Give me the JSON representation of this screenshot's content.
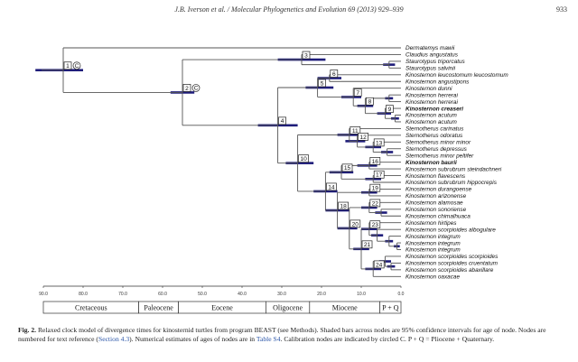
{
  "header": {
    "journal": "J.B. Iverson et al. / Molecular Phylogenetics and Evolution 69 (2013) 929–939",
    "page": "933"
  },
  "figure": {
    "taxa": [
      {
        "name": "Dermatemys mawii",
        "age": 0,
        "bold": false
      },
      {
        "name": "Claudius angustatus",
        "age": 0,
        "bold": false
      },
      {
        "name": "Staurotypus triporcatus",
        "age": 0,
        "bold": false
      },
      {
        "name": "Staurotypus salvinii",
        "age": 0,
        "bold": false
      },
      {
        "name": "Kinosternon leucostomum leucostomum",
        "age": 0,
        "bold": false
      },
      {
        "name": "Kinosternon angustipons",
        "age": 0,
        "bold": false
      },
      {
        "name": "Kinosternon dunni",
        "age": 0,
        "bold": false
      },
      {
        "name": "Kinosternon herrerai",
        "age": 0,
        "bold": false
      },
      {
        "name": "Kinosternon herrerai",
        "age": 0,
        "bold": false
      },
      {
        "name": "Kinosternon creaseri",
        "age": 0,
        "bold": true
      },
      {
        "name": "Kinosternon acutum",
        "age": 0,
        "bold": false
      },
      {
        "name": "Kinosternon acutum",
        "age": 0,
        "bold": false
      },
      {
        "name": "Sternotherus carinatus",
        "age": 0,
        "bold": false
      },
      {
        "name": "Sternotherus odoratus",
        "age": 0,
        "bold": false
      },
      {
        "name": "Sternotherus minor minor",
        "age": 0,
        "bold": false
      },
      {
        "name": "Sternotherus depressus",
        "age": 0,
        "bold": false
      },
      {
        "name": "Sternotherus minor peltifer",
        "age": 0,
        "bold": false
      },
      {
        "name": "Kinosternon baurii",
        "age": 0,
        "bold": true
      },
      {
        "name": "Kinosternon subrubrum steindachneri",
        "age": 0,
        "bold": false
      },
      {
        "name": "Kinosternon flavescens",
        "age": 0,
        "bold": false
      },
      {
        "name": "Kinosternon subrubrum hippocrepis",
        "age": 0,
        "bold": false
      },
      {
        "name": "Kinosternon durangoense",
        "age": 0,
        "bold": false
      },
      {
        "name": "Kinosternon arizonense",
        "age": 0,
        "bold": false
      },
      {
        "name": "Kinosternon alamosae",
        "age": 0,
        "bold": false
      },
      {
        "name": "Kinosternon sonoriense",
        "age": 0,
        "bold": false
      },
      {
        "name": "Kinosternon chimalhuaca",
        "age": 0,
        "bold": false
      },
      {
        "name": "Kinosternon hirtipes",
        "age": 0,
        "bold": false
      },
      {
        "name": "Kinosternon scorpioides albogulare",
        "age": 0,
        "bold": false
      },
      {
        "name": "Kinosternon integrum",
        "age": 0,
        "bold": false
      },
      {
        "name": "Kinosternon integrum",
        "age": 0,
        "bold": false
      },
      {
        "name": "Kinosternon integrum",
        "age": 0,
        "bold": false
      },
      {
        "name": "Kinosternon scorpioides scorpioides",
        "age": 0,
        "bold": false
      },
      {
        "name": "Kinosternon scorpioides cruentatum",
        "age": 0,
        "bold": false
      },
      {
        "name": "Kinosternon scorpioides abaxillare",
        "age": 0,
        "bold": false
      },
      {
        "name": "Kinosternon oaxacae",
        "age": 0,
        "bold": false
      }
    ],
    "nodes": [
      {
        "label": "1",
        "age": 85.0,
        "ci": [
          80.0,
          92.0
        ],
        "children": [
          0,
          "n2"
        ],
        "calibration": true
      },
      {
        "id": "n2",
        "label": "2",
        "age": 55.0,
        "ci": [
          52.0,
          58.0
        ],
        "children": [
          "n3",
          "n4"
        ],
        "calibration": true
      },
      {
        "id": "n3",
        "label": "3",
        "age": 25.0,
        "ci": [
          19.0,
          31.0
        ],
        "children": [
          1,
          "n3b"
        ]
      },
      {
        "id": "n3b",
        "label": "",
        "age": 3.0,
        "ci": [
          1.5,
          4.5
        ],
        "children": [
          2,
          3
        ]
      },
      {
        "id": "n4",
        "label": "4",
        "age": 31.0,
        "ci": [
          26.0,
          36.0
        ],
        "children": [
          "n5",
          "n10"
        ]
      },
      {
        "id": "n5",
        "label": "5",
        "age": 21.0,
        "ci": [
          17.0,
          24.0
        ],
        "children": [
          "n6",
          "n7"
        ]
      },
      {
        "id": "n6",
        "label": "6",
        "age": 18.0,
        "ci": [
          15.0,
          21.0
        ],
        "children": [
          4,
          5
        ]
      },
      {
        "id": "n7",
        "label": "7",
        "age": 12.0,
        "ci": [
          10.0,
          15.0
        ],
        "children": [
          6,
          "n8"
        ]
      },
      {
        "id": "n8",
        "label": "8",
        "age": 9.0,
        "ci": [
          7.0,
          11.0
        ],
        "children": [
          "n8a",
          "n9"
        ]
      },
      {
        "id": "n8a",
        "label": "",
        "age": 3.0,
        "ci": [
          2.0,
          4.0
        ],
        "children": [
          7,
          8
        ]
      },
      {
        "id": "n9",
        "label": "9",
        "age": 4.0,
        "ci": [
          2.5,
          6.0
        ],
        "children": [
          9,
          "n9a"
        ]
      },
      {
        "id": "n9a",
        "label": "",
        "age": 1.5,
        "ci": [
          0.5,
          2.5
        ],
        "children": [
          10,
          11
        ]
      },
      {
        "id": "n10",
        "label": "10",
        "age": 26.0,
        "ci": [
          22.0,
          29.0
        ],
        "children": [
          "n11",
          "n14"
        ]
      },
      {
        "id": "n11",
        "label": "11",
        "age": 13.0,
        "ci": [
          10.0,
          16.0
        ],
        "children": [
          12,
          "n12"
        ]
      },
      {
        "id": "n12",
        "label": "12",
        "age": 11.0,
        "ci": [
          9.0,
          14.0
        ],
        "children": [
          13,
          "n13"
        ]
      },
      {
        "id": "n13",
        "label": "13",
        "age": 7.0,
        "ci": [
          5.0,
          9.0
        ],
        "children": [
          14,
          "n13a"
        ]
      },
      {
        "id": "n13a",
        "label": "",
        "age": 3.5,
        "ci": [
          2.0,
          5.0
        ],
        "children": [
          15,
          16
        ]
      },
      {
        "id": "n14",
        "label": "14",
        "age": 19.0,
        "ci": [
          16.0,
          22.0
        ],
        "children": [
          "n15",
          "n18"
        ]
      },
      {
        "id": "n15",
        "label": "15",
        "age": 15.0,
        "ci": [
          12.0,
          18.0
        ],
        "children": [
          "n16",
          "n17"
        ]
      },
      {
        "id": "n16",
        "label": "16",
        "age": 8.0,
        "ci": [
          6.0,
          11.0
        ],
        "children": [
          17,
          18
        ]
      },
      {
        "id": "n17",
        "label": "17",
        "age": 7.0,
        "ci": [
          5.0,
          9.0
        ],
        "children": [
          19,
          20
        ]
      },
      {
        "id": "n18",
        "label": "18",
        "age": 16.0,
        "ci": [
          13.0,
          19.0
        ],
        "children": [
          "n19",
          "n20"
        ]
      },
      {
        "id": "n19",
        "label": "19",
        "age": 8.0,
        "ci": [
          6.0,
          10.0
        ],
        "children": [
          21,
          22
        ]
      },
      {
        "id": "n20",
        "label": "20",
        "age": 13.0,
        "ci": [
          11.0,
          16.0
        ],
        "children": [
          "n22",
          "n21"
        ]
      },
      {
        "id": "n22",
        "label": "22",
        "age": 8.0,
        "ci": [
          6.0,
          10.0
        ],
        "children": [
          23,
          "n22a"
        ]
      },
      {
        "id": "n22a",
        "label": "",
        "age": 5.0,
        "ci": [
          3.5,
          6.5
        ],
        "children": [
          24,
          25
        ]
      },
      {
        "id": "n21",
        "label": "21",
        "age": 10.0,
        "ci": [
          8.0,
          12.0
        ],
        "children": [
          "n23",
          "n24"
        ]
      },
      {
        "id": "n23",
        "label": "23",
        "age": 8.0,
        "ci": [
          6.0,
          10.0
        ],
        "children": [
          26,
          "n23a"
        ]
      },
      {
        "id": "n23a",
        "label": "",
        "age": 6.0,
        "ci": [
          4.5,
          7.5
        ],
        "children": [
          27,
          "n23b"
        ]
      },
      {
        "id": "n23b",
        "label": "",
        "age": 3.0,
        "ci": [
          2.0,
          4.0
        ],
        "children": [
          28,
          "n23c"
        ]
      },
      {
        "id": "n23c",
        "label": "",
        "age": 1.0,
        "ci": [
          0.3,
          1.8
        ],
        "children": [
          29,
          30
        ]
      },
      {
        "id": "n24",
        "label": "24",
        "age": 7.0,
        "ci": [
          5.0,
          9.0
        ],
        "children": [
          "n24a",
          34
        ]
      },
      {
        "id": "n24a",
        "label": "",
        "age": 4.0,
        "ci": [
          2.5,
          5.5
        ],
        "children": [
          31,
          "n24b"
        ]
      },
      {
        "id": "n24b",
        "label": "",
        "age": 2.5,
        "ci": [
          1.5,
          3.5
        ],
        "children": [
          32,
          33
        ]
      }
    ],
    "calibration_symbol": "C",
    "axis": {
      "ticks": [
        90.0,
        80.0,
        70.0,
        60.0,
        50.0,
        40.0,
        30.0,
        20.0,
        10.0,
        0.0
      ],
      "tick_labels": [
        "90.0",
        "80.0",
        "70.0",
        "60.0",
        "50.0",
        "40.0",
        "30.0",
        "20.0",
        "10.0",
        "0.0"
      ],
      "max_age": 90,
      "min_age": 0
    },
    "epochs": [
      {
        "label": "Cretaceous",
        "start": 90,
        "end": 66
      },
      {
        "label": "Paleocene",
        "start": 66,
        "end": 56
      },
      {
        "label": "Eocene",
        "start": 56,
        "end": 34
      },
      {
        "label": "Oligocene",
        "start": 34,
        "end": 23
      },
      {
        "label": "Miocene",
        "start": 23,
        "end": 5.3
      },
      {
        "label": "P + Q",
        "start": 5.3,
        "end": 0
      }
    ],
    "colors": {
      "branch": "#555555",
      "ci_bar": "#1f1d7a",
      "text": "#111111"
    }
  },
  "caption": {
    "label": "Fig. 2.",
    "text_1": "Relaxed clock model of divergence times for kinosternid turtles from program BEAST (see Methods). Shaded bars across nodes are 95% confidence intervals for age of node. Nodes are numbered for text reference (",
    "link_1": "Section 4.3",
    "text_2": "). Numerical estimates of ages of nodes are in ",
    "link_2": "Table S4",
    "text_3": ". Calibration nodes are indicated by circled C. P + Q = Pliocene + Quaternary."
  }
}
